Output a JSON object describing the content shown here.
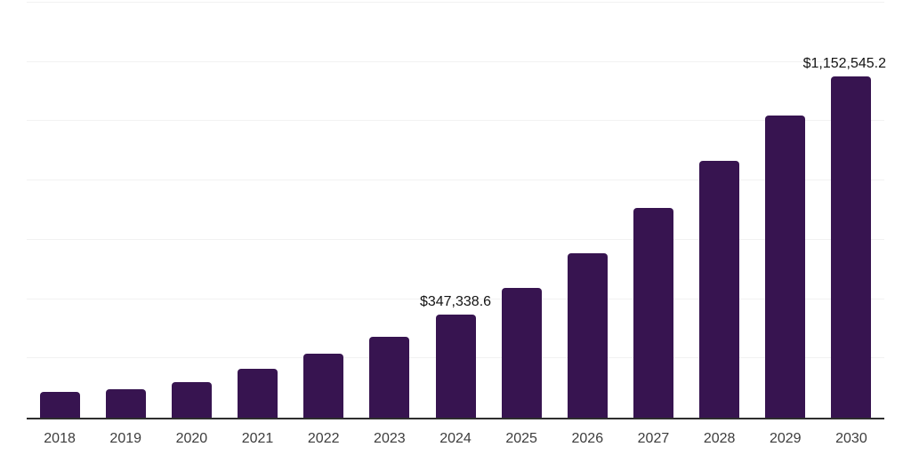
{
  "chart_data": {
    "type": "bar",
    "categories": [
      "2018",
      "2019",
      "2020",
      "2021",
      "2022",
      "2023",
      "2024",
      "2025",
      "2026",
      "2027",
      "2028",
      "2029",
      "2030"
    ],
    "values": [
      86800,
      97200,
      121000,
      165300,
      217300,
      274000,
      347338.6,
      438600,
      556000,
      707700,
      865000,
      1019500,
      1152545.2
    ],
    "value_labels": [
      {
        "category": "2024",
        "text": "$347,338.6"
      },
      {
        "category": "2030",
        "text": "$1,152,545.2"
      }
    ],
    "ylim": [
      0,
      1400000
    ],
    "grid_step": 200000,
    "grid": true,
    "legend": false,
    "colors": {
      "bar": "#371450",
      "gridline": "#f2f2f2",
      "axis_line": "#2e2e2e",
      "tick_label": "#3d3d3d",
      "value_label": "#141414",
      "background": "#ffffff"
    }
  }
}
